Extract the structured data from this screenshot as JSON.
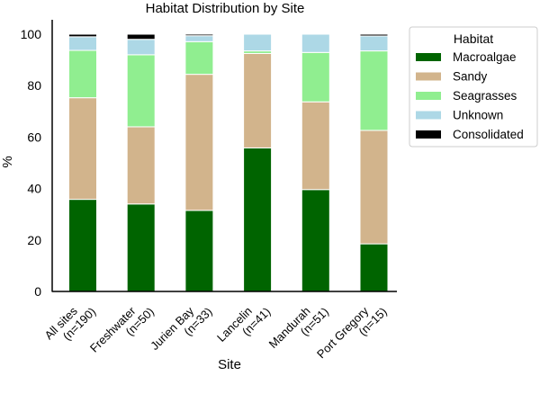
{
  "chart_data": {
    "type": "bar",
    "stacked": true,
    "title": "Habitat Distribution by Site",
    "xlabel": "Site",
    "ylabel": "%",
    "ylim": [
      0,
      100
    ],
    "yticks": [
      0,
      20,
      40,
      60,
      80,
      100
    ],
    "categories": [
      "All sites\n(n=190)",
      "Freshwater\n(n=50)",
      "Jurien Bay\n(n=33)",
      "Lancelin\n(n=41)",
      "Mandurah\n(n=51)",
      "Port Gregory\n(n=15)"
    ],
    "series": [
      {
        "name": "Macroalgae",
        "color": "#006400",
        "values": [
          35.8,
          34.0,
          31.5,
          55.8,
          39.6,
          18.5
        ]
      },
      {
        "name": "Sandy",
        "color": "#D2B48C",
        "values": [
          39.5,
          30.0,
          52.9,
          36.7,
          34.1,
          44.1
        ]
      },
      {
        "name": "Seagrasses",
        "color": "#90EE90",
        "values": [
          18.4,
          28.0,
          12.7,
          1.0,
          19.2,
          30.9
        ]
      },
      {
        "name": "Unknown",
        "color": "#ADD8E6",
        "values": [
          5.3,
          6.0,
          2.3,
          6.5,
          7.1,
          5.8
        ]
      },
      {
        "name": "Consolidated",
        "color": "#000000",
        "values": [
          1.0,
          2.0,
          0.6,
          0.0,
          0.0,
          0.7
        ]
      }
    ],
    "legend": {
      "title": "Habitat",
      "placement": "upper-right-outside"
    },
    "grid": false
  }
}
